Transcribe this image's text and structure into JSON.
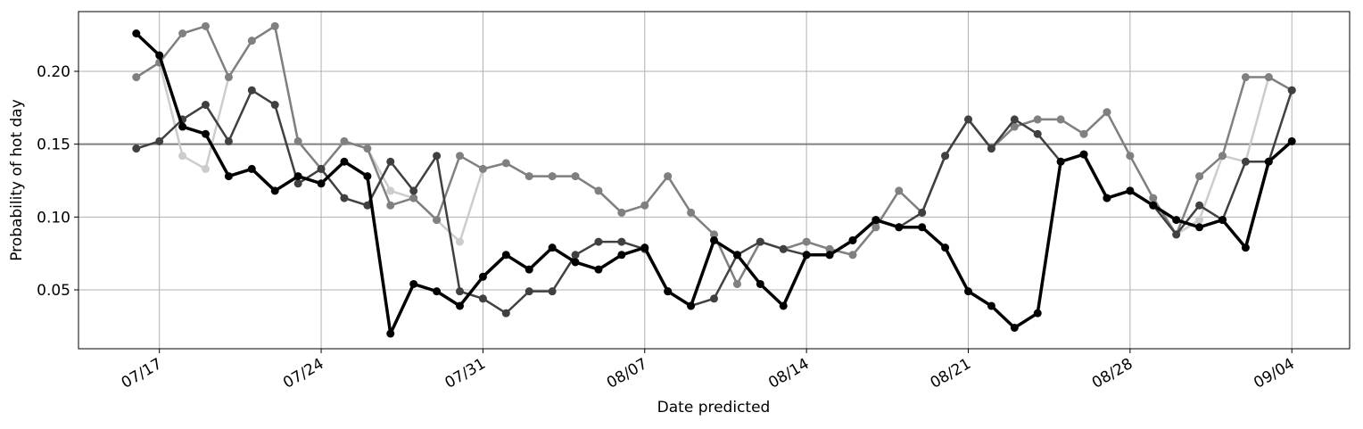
{
  "chart_data": {
    "type": "line",
    "xlabel": "Date predicted",
    "ylabel": "Probability of hot day",
    "x": [
      "07/16",
      "07/17",
      "07/18",
      "07/19",
      "07/20",
      "07/21",
      "07/22",
      "07/23",
      "07/24",
      "07/25",
      "07/26",
      "07/27",
      "07/28",
      "07/29",
      "07/30",
      "07/31",
      "08/01",
      "08/02",
      "08/03",
      "08/04",
      "08/05",
      "08/06",
      "08/07",
      "08/08",
      "08/09",
      "08/10",
      "08/11",
      "08/12",
      "08/13",
      "08/14",
      "08/15",
      "08/16",
      "08/17",
      "08/18",
      "08/19",
      "08/20",
      "08/21",
      "08/22",
      "08/23",
      "08/24",
      "08/25",
      "08/26",
      "08/27",
      "08/28",
      "08/29",
      "08/30",
      "08/31",
      "09/01",
      "09/02",
      "09/03",
      "09/04"
    ],
    "xticks": [
      "07/17",
      "07/24",
      "07/31",
      "08/07",
      "08/14",
      "08/21",
      "08/28",
      "09/04"
    ],
    "ylim": [
      0.0096,
      0.241
    ],
    "yticks": [
      {
        "value": 0.05,
        "label": "0.05"
      },
      {
        "value": 0.1,
        "label": "0.10"
      },
      0.15,
      {
        "value": 0.2,
        "label": "0.20"
      }
    ],
    "grid": true,
    "hline": {
      "value": 0.15,
      "color": "#808080"
    },
    "series": [
      {
        "color": "#cccccc",
        "values": [
          0.196,
          0.206,
          0.142,
          0.133,
          0.196,
          0.221,
          0.231,
          0.152,
          0.133,
          0.152,
          0.147,
          0.118,
          0.113,
          0.098,
          0.083,
          0.133,
          0.137,
          0.128,
          0.128,
          0.128,
          0.118,
          0.103,
          0.108,
          0.128,
          0.103,
          0.088,
          0.054,
          0.083,
          0.078,
          0.083,
          0.078,
          0.074,
          0.093,
          0.118,
          0.103,
          0.142,
          0.167,
          0.147,
          0.162,
          0.167,
          0.167,
          0.157,
          0.172,
          0.142,
          0.113,
          0.088,
          0.098,
          0.142,
          0.138,
          0.196,
          0.187
        ]
      },
      {
        "color": "#808080",
        "values": [
          0.196,
          0.206,
          0.226,
          0.231,
          0.196,
          0.221,
          0.231,
          0.152,
          0.133,
          0.152,
          0.147,
          0.108,
          0.113,
          0.098,
          0.142,
          0.133,
          0.137,
          0.128,
          0.128,
          0.128,
          0.118,
          0.103,
          0.108,
          0.128,
          0.103,
          0.088,
          0.054,
          0.083,
          0.078,
          0.083,
          0.078,
          0.074,
          0.093,
          0.118,
          0.103,
          0.142,
          0.167,
          0.147,
          0.162,
          0.167,
          0.167,
          0.157,
          0.172,
          0.142,
          0.113,
          0.088,
          0.128,
          0.142,
          0.196,
          0.196,
          0.187
        ]
      },
      {
        "color": "#404040",
        "values": [
          0.147,
          0.152,
          0.167,
          0.177,
          0.152,
          0.187,
          0.177,
          0.123,
          0.133,
          0.113,
          0.108,
          0.138,
          0.118,
          0.142,
          0.049,
          0.044,
          0.034,
          0.049,
          0.049,
          0.074,
          0.083,
          0.083,
          0.078,
          0.049,
          0.039,
          0.044,
          0.074,
          0.083,
          0.078,
          0.074,
          0.074,
          0.084,
          0.098,
          0.093,
          0.103,
          0.142,
          0.167,
          0.147,
          0.167,
          0.157,
          0.138,
          0.143,
          0.113,
          0.118,
          0.108,
          0.088,
          0.108,
          0.098,
          0.138,
          0.138,
          0.187
        ]
      },
      {
        "color": "#000000",
        "values": [
          0.226,
          0.211,
          0.162,
          0.157,
          0.128,
          0.133,
          0.118,
          0.128,
          0.123,
          0.138,
          0.128,
          0.02,
          0.054,
          0.049,
          0.039,
          0.059,
          0.074,
          0.064,
          0.079,
          0.069,
          0.064,
          0.074,
          0.079,
          0.049,
          0.039,
          0.084,
          0.074,
          0.054,
          0.039,
          0.074,
          0.074,
          0.084,
          0.098,
          0.093,
          0.093,
          0.079,
          0.049,
          0.039,
          0.024,
          0.034,
          0.138,
          0.143,
          0.113,
          0.118,
          0.108,
          0.098,
          0.093,
          0.098,
          0.079,
          0.138,
          0.152
        ]
      }
    ]
  }
}
